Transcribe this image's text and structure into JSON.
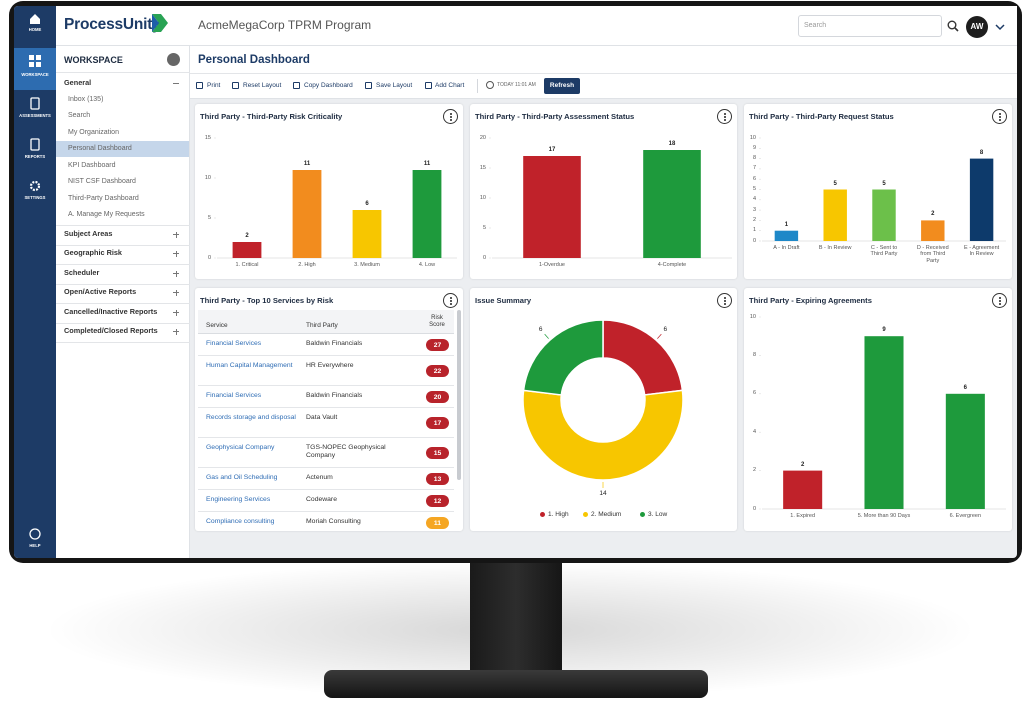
{
  "header": {
    "logo": "ProcessUnity",
    "program": "AcmeMegaCorp TPRM Program",
    "search": "Search",
    "avatar": "AW"
  },
  "nav": [
    "HOME",
    "WORKSPACE",
    "ASSESSMENTS",
    "REPORTS",
    "SETTINGS",
    "HELP"
  ],
  "sidebar": {
    "title": "WORKSPACE",
    "general": {
      "label": "General",
      "items": [
        "Inbox (135)",
        "Search",
        "My Organization",
        "Personal Dashboard",
        "KPI Dashboard",
        "NIST CSF Dashboard",
        "Third-Party Dashboard",
        "A. Manage My Requests"
      ]
    },
    "sections": [
      "Subject Areas",
      "Geographic Risk",
      "Scheduler",
      "Open/Active Reports",
      "Cancelled/Inactive Reports",
      "Completed/Closed Reports"
    ]
  },
  "dashboard": {
    "title": "Personal Dashboard",
    "toolbar": [
      "Print",
      "Reset Layout",
      "Copy Dashboard",
      "Save Layout",
      "Add Chart"
    ],
    "updated": "TODAY 11:01 AM",
    "refresh": "Refresh"
  },
  "widgets": [
    {
      "chart_data": {
        "type": "bar",
        "title": "Third Party - Third-Party Risk Criticality",
        "categories": [
          "1. Critical",
          "2. High",
          "3. Medium",
          "4. Low"
        ],
        "values": [
          2,
          11,
          6,
          11
        ],
        "colors": [
          "#c0222a",
          "#f28c1e",
          "#f7c600",
          "#1e9a3c"
        ],
        "ylim": [
          0,
          15
        ],
        "yticks": [
          0,
          5,
          10,
          15
        ],
        "grid": false
      }
    },
    {
      "chart_data": {
        "type": "bar",
        "title": "Third Party - Third-Party Assessment Status",
        "categories": [
          "1-Overdue",
          "4-Complete"
        ],
        "values": [
          17,
          18
        ],
        "colors": [
          "#c0222a",
          "#1e9a3c"
        ],
        "ylim": [
          0,
          20
        ],
        "yticks": [
          0,
          5,
          10,
          15,
          20
        ],
        "grid": false
      }
    },
    {
      "chart_data": {
        "type": "bar",
        "title": "Third Party - Third-Party Request Status",
        "categories": [
          "A - In Draft",
          "B - In Review",
          "C - Sent to Third Party",
          "D - Received from Third Party",
          "E - Agreement In Review"
        ],
        "values": [
          1,
          5,
          5,
          2,
          8
        ],
        "colors": [
          "#1e88c8",
          "#f7c600",
          "#6cc04a",
          "#f28c1e",
          "#0d3a6b"
        ],
        "ylim": [
          0,
          10
        ],
        "yticks": [
          0,
          1,
          2,
          3,
          4,
          5,
          6,
          7,
          8,
          9,
          10
        ],
        "grid": false
      }
    },
    {
      "title": "Third Party - Top 10 Services by Risk",
      "table": {
        "columns": [
          "Service",
          "Third Party",
          "Risk Score"
        ],
        "rows": [
          [
            "Financial Services",
            "Baldwin Financials",
            27
          ],
          [
            "Human Capital Management",
            "HR Everywhere",
            22
          ],
          [
            "Financial Services",
            "Baldwin Financials",
            20
          ],
          [
            "Records storage and disposal",
            "Data Vault",
            17
          ],
          [
            "Geophysical Company",
            "TGS-NOPEC Geophysical Company",
            15
          ],
          [
            "Gas and Oil Scheduling",
            "Actenum",
            13
          ],
          [
            "Engineering Services",
            "Codeware",
            12
          ],
          [
            "Compliance consulting",
            "Moriah Consulting",
            11
          ]
        ],
        "score_colors": [
          "#b8232b",
          "#b8232b",
          "#b8232b",
          "#b8232b",
          "#b8232b",
          "#b8232b",
          "#b8232b",
          "#f5a623"
        ]
      }
    },
    {
      "chart_data": {
        "type": "pie",
        "title": "Issue Summary",
        "categories": [
          "1. High",
          "2. Medium",
          "3. Low"
        ],
        "values": [
          6,
          14,
          6
        ],
        "colors": [
          "#c0222a",
          "#f7c600",
          "#1e9a3c"
        ]
      }
    },
    {
      "chart_data": {
        "type": "bar",
        "title": "Third Party - Expiring Agreements",
        "categories": [
          "1. Expired",
          "5. More than 90 Days",
          "6. Evergreen"
        ],
        "values": [
          2,
          9,
          6
        ],
        "colors": [
          "#c0222a",
          "#1e9a3c",
          "#1e9a3c"
        ],
        "ylim": [
          0,
          10
        ],
        "yticks": [
          0,
          2,
          4,
          6,
          8,
          10
        ],
        "grid": false
      }
    }
  ]
}
